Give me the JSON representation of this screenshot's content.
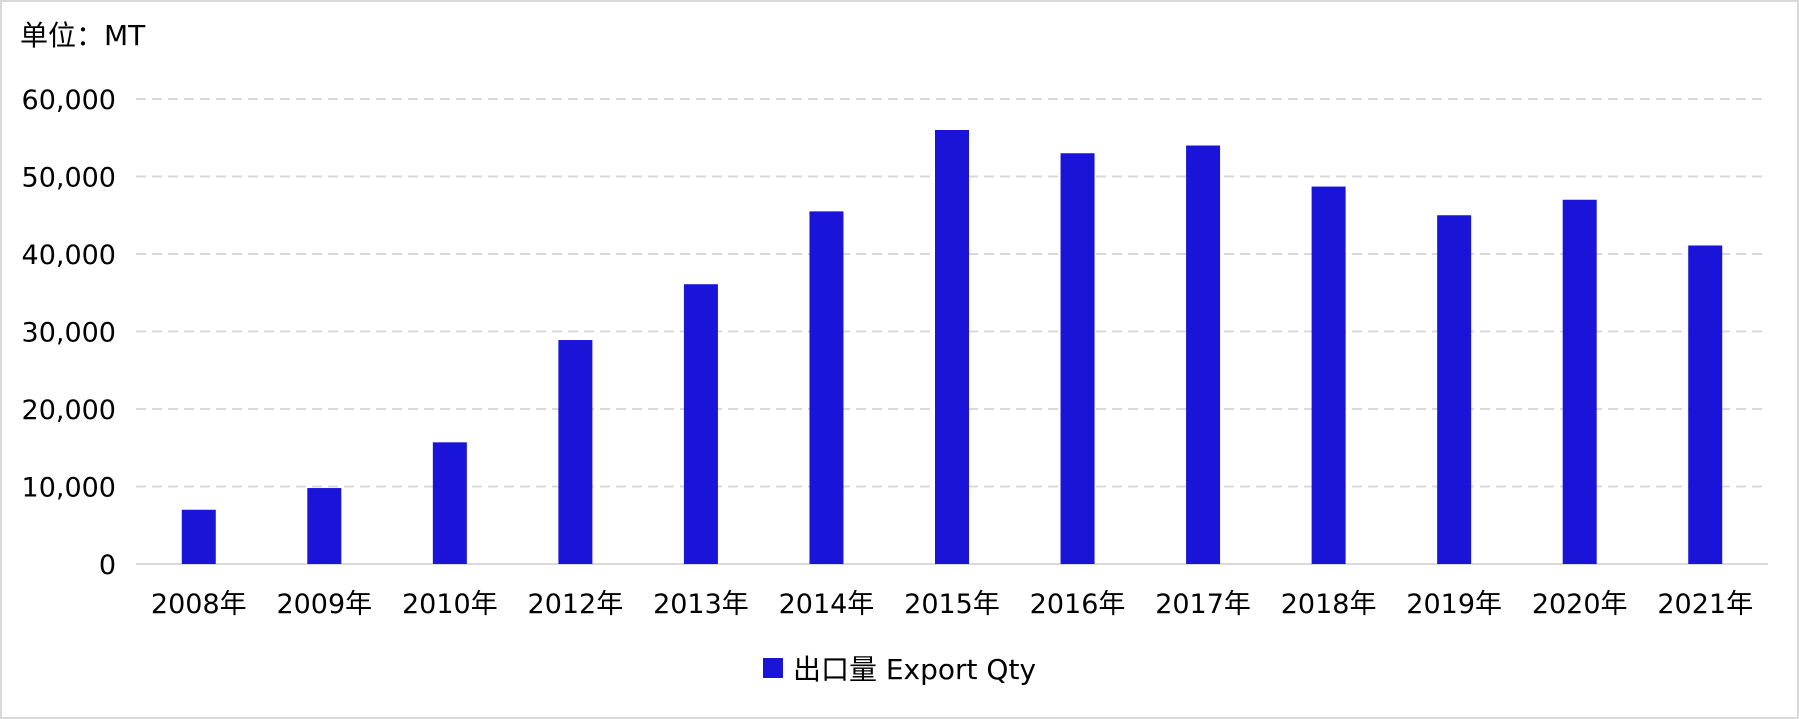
{
  "unit_label": "单位：MT",
  "colors": {
    "bar": "#1a14d8",
    "grid": "#d9d9d9",
    "axis": "#d9d9d9"
  },
  "chart_data": {
    "type": "bar",
    "title": "",
    "xlabel": "",
    "ylabel": "单位：MT",
    "categories": [
      "2008年",
      "2009年",
      "2010年",
      "2012年",
      "2013年",
      "2014年",
      "2015年",
      "2016年",
      "2017年",
      "2018年",
      "2019年",
      "2020年",
      "2021年"
    ],
    "series": [
      {
        "name": "出口量 Export Qty",
        "values": [
          7000,
          9800,
          15700,
          28900,
          36100,
          45500,
          56000,
          53000,
          54000,
          48700,
          45000,
          47000,
          41100
        ]
      }
    ],
    "ylim": [
      0,
      60000
    ],
    "yticks": [
      0,
      10000,
      20000,
      30000,
      40000,
      50000,
      60000
    ],
    "ytick_labels": [
      "0",
      "10,000",
      "20,000",
      "30,000",
      "40,000",
      "50,000",
      "60,000"
    ],
    "grid": true,
    "legend_position": "bottom-center"
  }
}
